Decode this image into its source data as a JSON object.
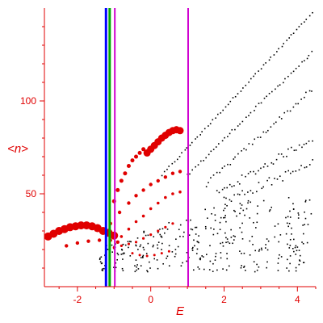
{
  "chart_data": {
    "type": "scatter",
    "title": "",
    "xlabel": "E",
    "ylabel": "<n>",
    "xlim": [
      -2.9,
      4.5
    ],
    "ylim": [
      0,
      150
    ],
    "xticks": [
      -2,
      0,
      2,
      4
    ],
    "yticks": [
      50,
      100
    ],
    "grid": false,
    "colors": {
      "axis": "#e00000",
      "red_points": "#e00000",
      "black_points": "#000000",
      "blue_line": "#0000ff",
      "green_line": "#00aa00",
      "magenta_line": "#d000d0"
    },
    "vertical_lines": [
      {
        "x": -1.22,
        "color": "blue"
      },
      {
        "x": -1.12,
        "color": "green"
      },
      {
        "x": -0.98,
        "color": "magenta"
      },
      {
        "x": 1.02,
        "color": "magenta"
      }
    ],
    "red_series": [
      {
        "x": [
          -2.8,
          -2.65,
          -2.5,
          -2.35,
          -2.2,
          -2.05,
          -1.9,
          -1.75,
          -1.6,
          -1.45,
          -1.3,
          -1.15,
          -1.0
        ],
        "y": [
          27,
          28.5,
          30,
          31,
          32,
          32.5,
          33,
          33,
          32.5,
          31.5,
          30,
          29,
          27.5
        ],
        "size": 5
      },
      {
        "x": [
          -2.3,
          -2.0,
          -1.7,
          -1.4,
          -1.1,
          -0.9
        ],
        "y": [
          22,
          23.5,
          24.5,
          25,
          25,
          24
        ],
        "size": 2.2
      },
      {
        "x": [
          -1.0,
          -0.9,
          -0.8,
          -0.7,
          -0.6,
          -0.5,
          -0.4,
          -0.3,
          -0.2
        ],
        "y": [
          46,
          52,
          57,
          61,
          65,
          68,
          70,
          72,
          74
        ],
        "size": 2.5
      },
      {
        "x": [
          -0.1,
          0.0,
          0.1,
          0.2,
          0.3,
          0.4,
          0.5,
          0.6,
          0.7,
          0.8
        ],
        "y": [
          72,
          74,
          76,
          78,
          80,
          81.5,
          83,
          84,
          84.5,
          84
        ],
        "size": 4.5
      },
      {
        "x": [
          -1.1,
          -0.85,
          -0.6,
          -0.4,
          -0.2,
          0.0,
          0.2,
          0.4,
          0.6,
          0.8
        ],
        "y": [
          34,
          40,
          45,
          49,
          52,
          55,
          57,
          59,
          61,
          62
        ],
        "size": 2.2
      },
      {
        "x": [
          -0.8,
          -0.6,
          -0.4,
          -0.2,
          0.0,
          0.2,
          0.4,
          0.6,
          0.8
        ],
        "y": [
          27,
          31,
          35,
          38,
          42,
          45,
          48,
          50,
          51
        ],
        "size": 1.8
      },
      {
        "x": [
          -1.0,
          -0.8,
          -0.6,
          -0.4,
          -0.2,
          0.0,
          0.2,
          0.4,
          0.6
        ],
        "y": [
          21,
          22,
          23,
          24,
          26,
          28,
          30,
          32,
          34
        ],
        "size": 1.6
      },
      {
        "x": [
          -0.5,
          -0.3,
          -0.1,
          0.1,
          0.3,
          0.5
        ],
        "y": [
          18,
          17,
          16.5,
          17,
          18,
          19
        ],
        "size": 1.5
      }
    ],
    "black_bands": [
      {
        "x_start": 0.3,
        "x_end": 4.4,
        "y_start": 60,
        "y_end": 147,
        "count": 60,
        "jitter": 1.0
      },
      {
        "x_start": 1.0,
        "x_end": 4.4,
        "y_start": 60,
        "y_end": 126,
        "count": 48,
        "jitter": 1.5
      },
      {
        "x_start": 1.5,
        "x_end": 4.4,
        "y_start": 55,
        "y_end": 106,
        "count": 40,
        "jitter": 2.5
      },
      {
        "x_start": 1.8,
        "x_end": 4.4,
        "y_start": 50,
        "y_end": 80,
        "count": 38,
        "jitter": 4.0
      },
      {
        "x_start": 2.0,
        "x_end": 4.4,
        "y_start": 46,
        "y_end": 66,
        "count": 34,
        "jitter": 5.0
      }
    ],
    "black_cloud": {
      "x_start": -1.4,
      "x_end": 4.4,
      "y_min": 8,
      "y_max": 48,
      "count": 330
    }
  }
}
